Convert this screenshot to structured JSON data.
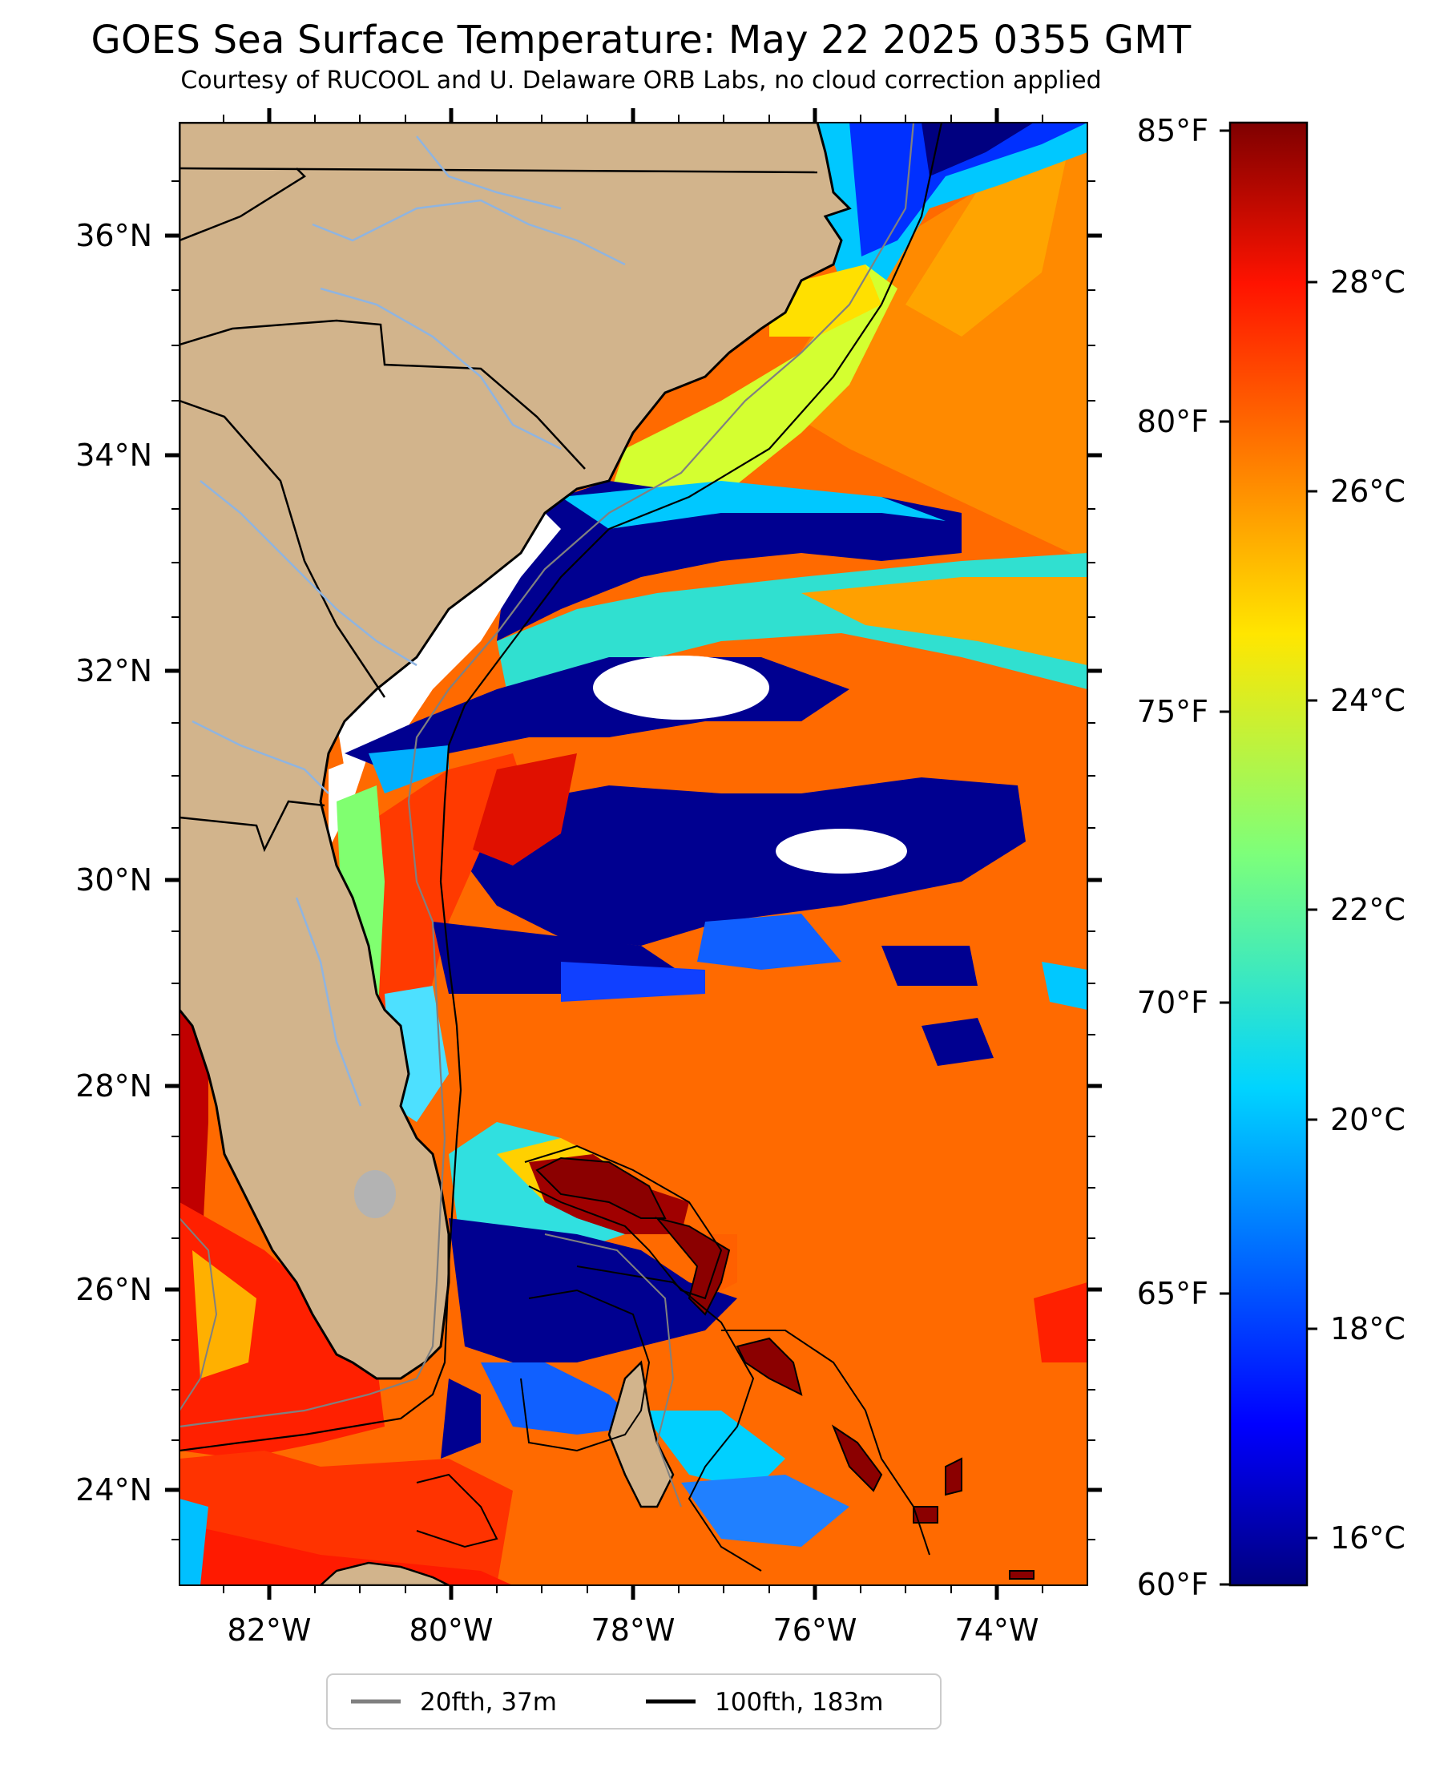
{
  "title": "GOES Sea Surface Temperature: May 22 2025 0355 GMT",
  "subtitle": "Courtesy of RUCOOL and U. Delaware ORB Labs, no cloud correction applied",
  "map": {
    "lat_labels": [
      "36°N",
      "34°N",
      "32°N",
      "30°N",
      "28°N",
      "26°N",
      "24°N"
    ],
    "lon_labels": [
      "82°W",
      "80°W",
      "78°W",
      "76°W",
      "74°W"
    ],
    "land_color": "#d2b48c",
    "cloud_mask_color": "#ffffff",
    "isobath_20fth_color": "#808080",
    "isobath_100fth_color": "#000000"
  },
  "colorbar": {
    "fahrenheit_labels": [
      "85°F",
      "80°F",
      "75°F",
      "70°F",
      "65°F",
      "60°F"
    ],
    "celsius_labels": [
      "28°C",
      "26°C",
      "24°C",
      "22°C",
      "20°C",
      "18°C",
      "16°C"
    ],
    "colormap": "jet",
    "range_f": [
      60,
      85
    ]
  },
  "legend": {
    "items": [
      {
        "label": "20fth, 37m",
        "color": "#808080"
      },
      {
        "label": "100fth, 183m",
        "color": "#000000"
      }
    ]
  }
}
